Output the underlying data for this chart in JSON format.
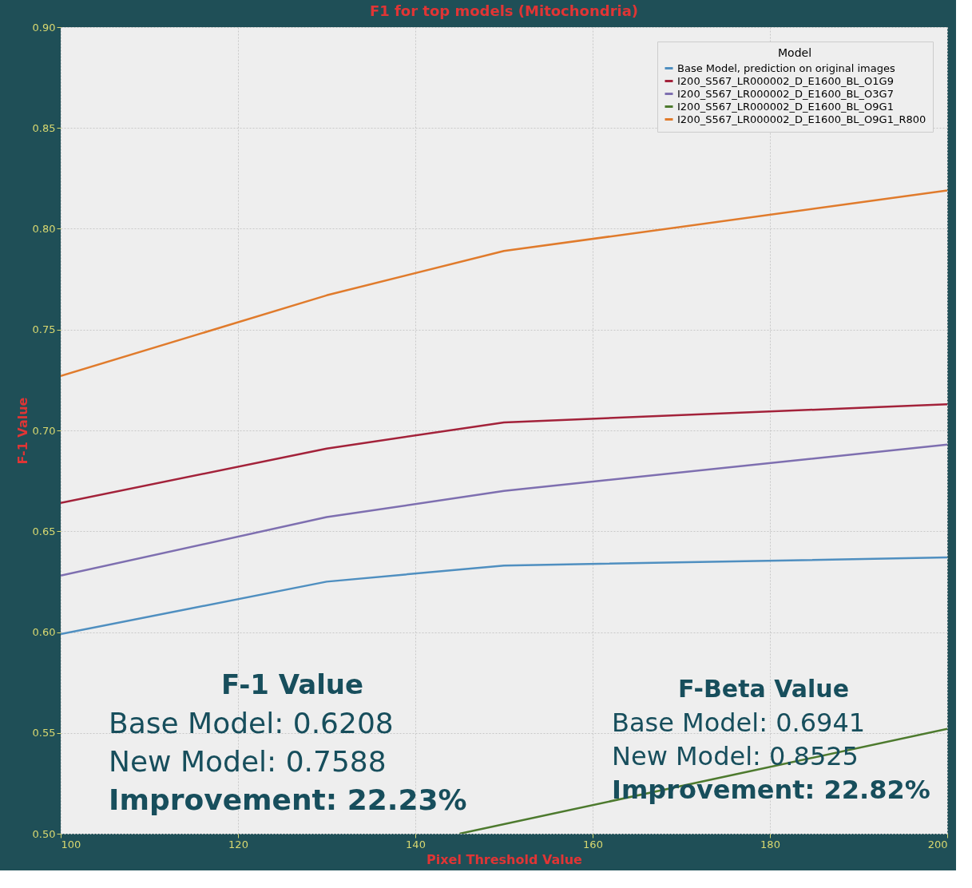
{
  "chart_data": {
    "type": "line",
    "title": "F1 for top models (Mitochondria)",
    "xlabel": "Pixel Threshold Value",
    "ylabel": "F-1 Value",
    "legend_title": "Model",
    "x": [
      100,
      130,
      150,
      200
    ],
    "series": [
      {
        "name": "Base Model, prediction on original images",
        "color": "#4f8fc0",
        "values": [
          0.599,
          0.625,
          0.633,
          0.637
        ]
      },
      {
        "name": "I200_S567_LR000002_D_E1600_BL_O1G9",
        "color": "#a3223a",
        "values": [
          0.664,
          0.691,
          0.704,
          0.713
        ]
      },
      {
        "name": "I200_S567_LR000002_D_E1600_BL_O3G7",
        "color": "#7e6fb0",
        "values": [
          0.628,
          0.657,
          0.67,
          0.693
        ]
      },
      {
        "name": "I200_S567_LR000002_D_E1600_BL_O9G1",
        "color": "#4d7a2e",
        "x": [
          145,
          200
        ],
        "values": [
          0.5,
          0.552
        ]
      },
      {
        "name": "I200_S567_LR000002_D_E1600_BL_O9G1_R800",
        "color": "#e07b2c",
        "values": [
          0.727,
          0.767,
          0.789,
          0.819
        ]
      }
    ],
    "xlim": [
      100,
      200
    ],
    "xticks": [
      100,
      120,
      140,
      160,
      180,
      200
    ],
    "ylim": [
      0.5,
      0.9
    ],
    "yticks": [
      {
        "value": 0.5,
        "label": "0.50"
      },
      {
        "value": 0.55,
        "label": "0.55"
      },
      {
        "value": 0.6,
        "label": "0.60"
      },
      {
        "value": 0.65,
        "label": "0.65"
      },
      {
        "value": 0.7,
        "label": "0.70"
      },
      {
        "value": 0.75,
        "label": "0.75"
      },
      {
        "value": 0.8,
        "label": "0.80"
      },
      {
        "value": 0.85,
        "label": "0.85"
      },
      {
        "value": 0.9,
        "label": "0.90"
      }
    ],
    "grid": true,
    "legend": "top right",
    "marker": "none",
    "line_style": "solid",
    "annotations": [
      "F-1 Value",
      "Base Model: 0.6208",
      "New Model: 0.7588",
      "Improvement: 22.23%",
      "F-Beta Value",
      "Base Model: 0.6941",
      "New Model: 0.8525",
      "Improvement: 22.82%"
    ]
  }
}
